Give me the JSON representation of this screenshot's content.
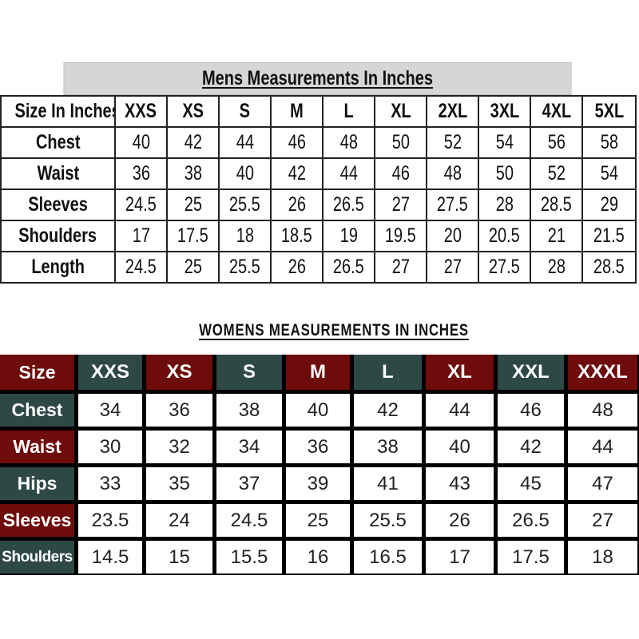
{
  "mens": {
    "title": "Mens Measurements In Inches",
    "header_label": "Size In Inches",
    "sizes": [
      "XXS",
      "XS",
      "S",
      "M",
      "L",
      "XL",
      "2XL",
      "3XL",
      "4XL",
      "5XL"
    ],
    "rows": [
      {
        "label": "Chest",
        "values": [
          "40",
          "42",
          "44",
          "46",
          "48",
          "50",
          "52",
          "54",
          "56",
          "58"
        ]
      },
      {
        "label": "Waist",
        "values": [
          "36",
          "38",
          "40",
          "42",
          "44",
          "46",
          "48",
          "50",
          "52",
          "54"
        ]
      },
      {
        "label": "Sleeves",
        "values": [
          "24.5",
          "25",
          "25.5",
          "26",
          "26.5",
          "27",
          "27.5",
          "28",
          "28.5",
          "29"
        ]
      },
      {
        "label": "Shoulders",
        "values": [
          "17",
          "17.5",
          "18",
          "18.5",
          "19",
          "19.5",
          "20",
          "20.5",
          "21",
          "21.5"
        ]
      },
      {
        "label": "Length",
        "values": [
          "24.5",
          "25",
          "25.5",
          "26",
          "26.5",
          "27",
          "27",
          "27.5",
          "28",
          "28.5"
        ]
      }
    ],
    "colors": {
      "title_bg": "#d6d6d6",
      "border": "#222222"
    }
  },
  "womens": {
    "title": "WOMENS MEASUREMENTS IN INCHES",
    "header_label": "Size",
    "sizes": [
      "XXS",
      "XS",
      "S",
      "M",
      "L",
      "XL",
      "XXL",
      "XXXL"
    ],
    "rows": [
      {
        "label": "Chest",
        "values": [
          "34",
          "36",
          "38",
          "40",
          "42",
          "44",
          "46",
          "48"
        ]
      },
      {
        "label": "Waist",
        "values": [
          "30",
          "32",
          "34",
          "36",
          "38",
          "40",
          "42",
          "44"
        ]
      },
      {
        "label": "Hips",
        "values": [
          "33",
          "35",
          "37",
          "39",
          "41",
          "43",
          "45",
          "47"
        ]
      },
      {
        "label": "Sleeves",
        "values": [
          "23.5",
          "24",
          "24.5",
          "25",
          "25.5",
          "26",
          "26.5",
          "27"
        ]
      },
      {
        "label": "Shoulders",
        "values": [
          "14.5",
          "15",
          "15.5",
          "16",
          "16.5",
          "17",
          "17.5",
          "18"
        ]
      }
    ],
    "colors": {
      "red": "#6e0b0b",
      "green": "#2e4845",
      "grid": "#000000"
    }
  }
}
